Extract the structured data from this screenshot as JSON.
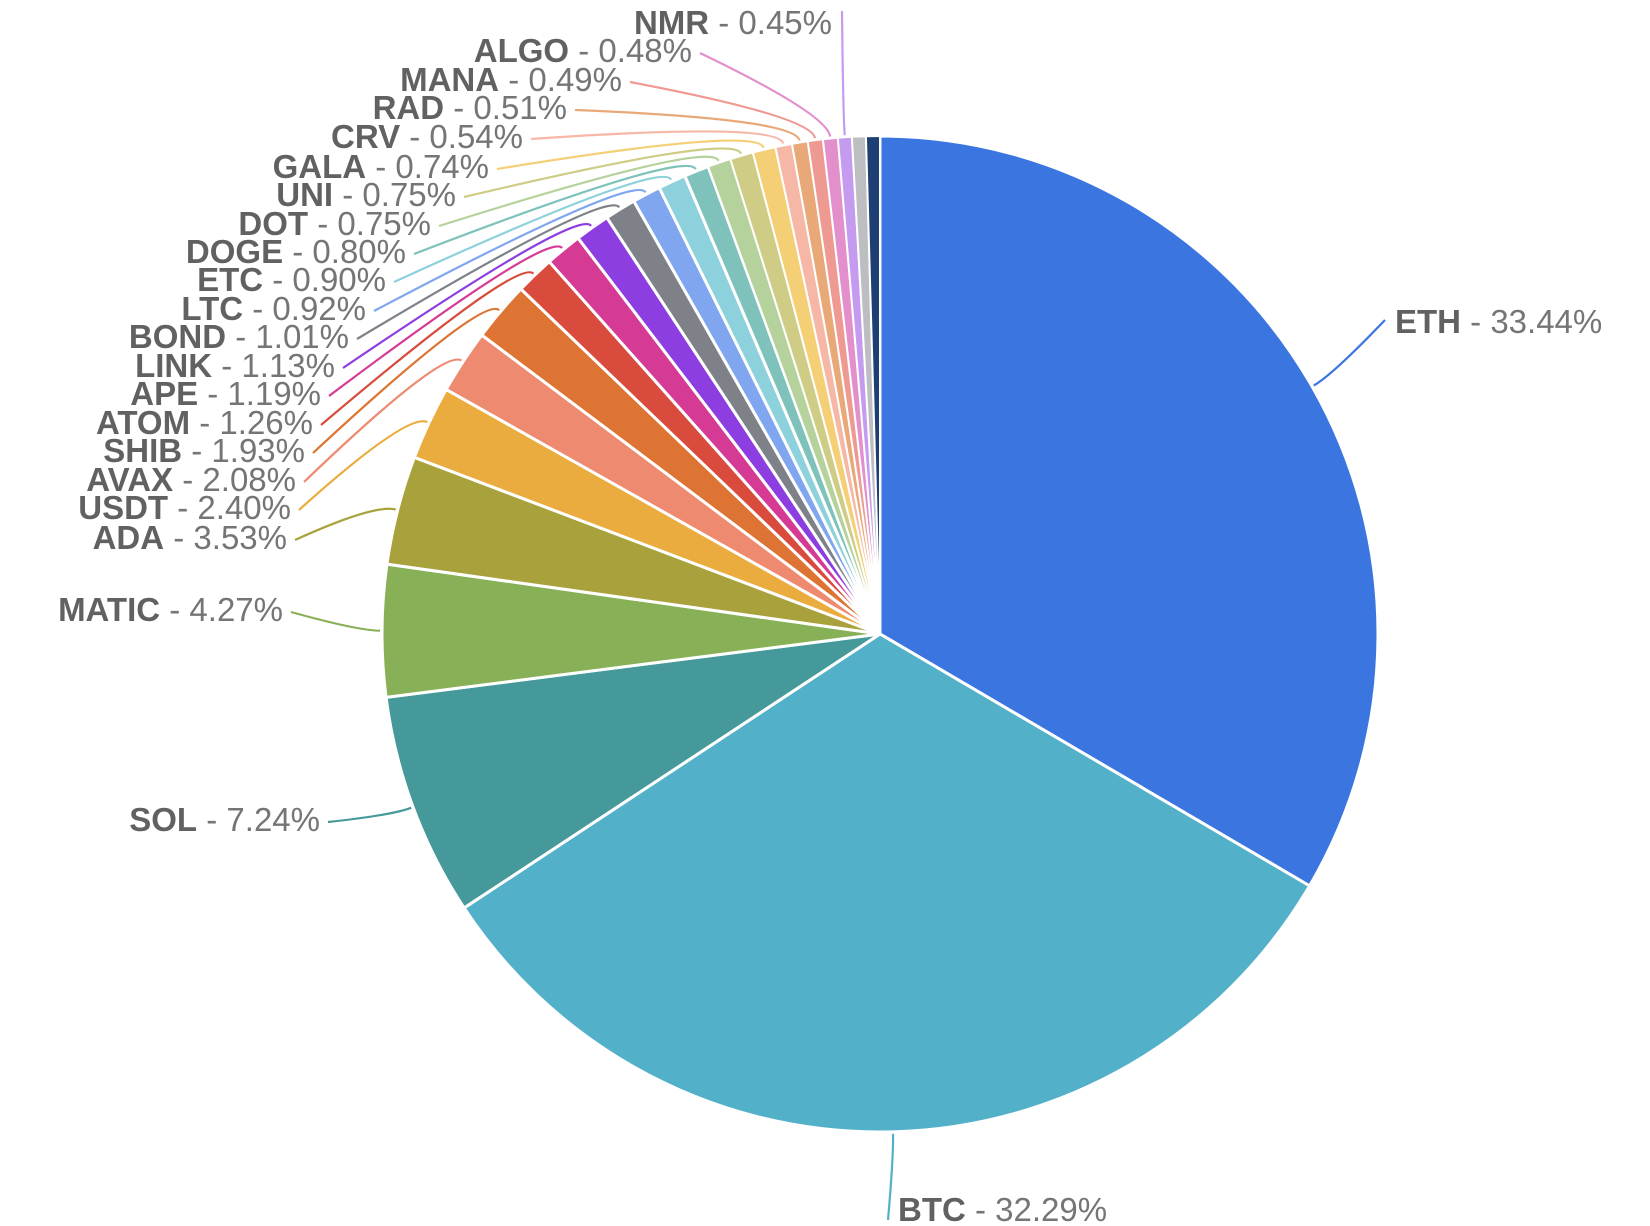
{
  "chart_data": {
    "type": "pie",
    "title": "",
    "label_format": "{name} - {value}%",
    "slices": [
      {
        "name": "ETH",
        "value": 33.44,
        "label": "33.44%",
        "color": "#3a75e0"
      },
      {
        "name": "BTC",
        "value": 32.29,
        "label": "32.29%",
        "color": "#52b0c8"
      },
      {
        "name": "SOL",
        "value": 7.24,
        "label": "7.24%",
        "color": "#45999a"
      },
      {
        "name": "MATIC",
        "value": 4.27,
        "label": "4.27%",
        "color": "#88b157"
      },
      {
        "name": "ADA",
        "value": 3.53,
        "label": "3.53%",
        "color": "#a9a23c"
      },
      {
        "name": "USDT",
        "value": 2.4,
        "label": "2.40%",
        "color": "#ebac3f"
      },
      {
        "name": "AVAX",
        "value": 2.08,
        "label": "2.08%",
        "color": "#ee8a6f"
      },
      {
        "name": "SHIB",
        "value": 1.93,
        "label": "1.93%",
        "color": "#dd7433"
      },
      {
        "name": "ATOM",
        "value": 1.26,
        "label": "1.26%",
        "color": "#d94c3d"
      },
      {
        "name": "APE",
        "value": 1.19,
        "label": "1.19%",
        "color": "#d53b95"
      },
      {
        "name": "LINK",
        "value": 1.13,
        "label": "1.13%",
        "color": "#8d3ee0"
      },
      {
        "name": "BOND",
        "value": 1.01,
        "label": "1.01%",
        "color": "#7e8288"
      },
      {
        "name": "LTC",
        "value": 0.92,
        "label": "0.92%",
        "color": "#7fa6ee"
      },
      {
        "name": "ETC",
        "value": 0.9,
        "label": "0.90%",
        "color": "#8dd1dc"
      },
      {
        "name": "DOGE",
        "value": 0.8,
        "label": "0.80%",
        "color": "#7fc2bb"
      },
      {
        "name": "DOT",
        "value": 0.75,
        "label": "0.75%",
        "color": "#b5d29c"
      },
      {
        "name": "UNI",
        "value": 0.75,
        "label": "0.75%",
        "color": "#cfcc86"
      },
      {
        "name": "GALA",
        "value": 0.74,
        "label": "0.74%",
        "color": "#f5cf76"
      },
      {
        "name": "CRV",
        "value": 0.54,
        "label": "0.54%",
        "color": "#f6b7a7"
      },
      {
        "name": "RAD",
        "value": 0.51,
        "label": "0.51%",
        "color": "#e9a878"
      },
      {
        "name": "MANA",
        "value": 0.49,
        "label": "0.49%",
        "color": "#ee9a93"
      },
      {
        "name": "ALGO",
        "value": 0.48,
        "label": "0.48%",
        "color": "#e38fcc"
      },
      {
        "name": "NMR",
        "value": 0.45,
        "label": "0.45%",
        "color": "#c59bef"
      },
      {
        "name": "",
        "value": 0.45,
        "label": "",
        "color": "#bcbec2"
      },
      {
        "name": "",
        "value": 0.45,
        "label": "",
        "color": "#1e3f73"
      }
    ]
  }
}
